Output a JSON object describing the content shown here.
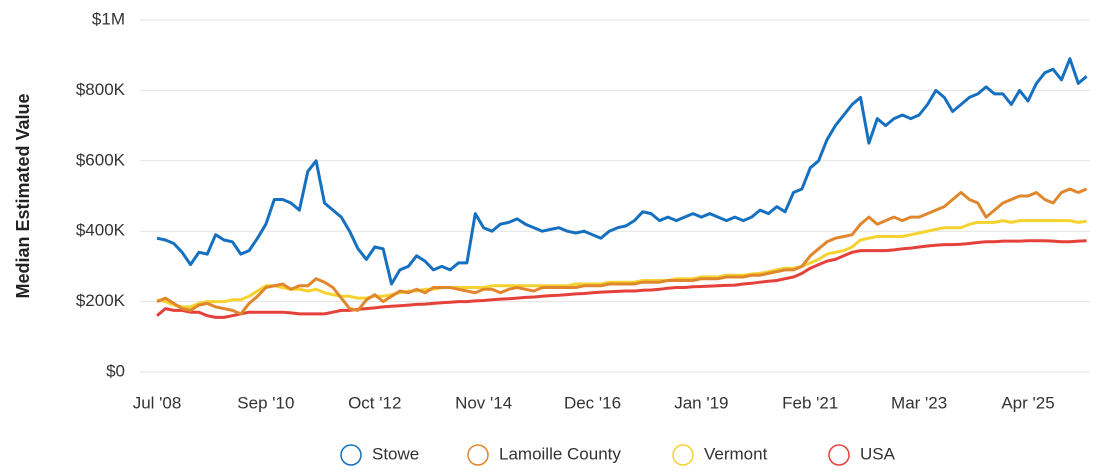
{
  "chart_data": {
    "type": "line",
    "y_label": "Median Estimated Value",
    "categories": [
      "Jul '08",
      null,
      null,
      null,
      null,
      null,
      null,
      null,
      null,
      null,
      null,
      null,
      null,
      "Sep '10",
      null,
      null,
      null,
      null,
      null,
      null,
      null,
      null,
      null,
      null,
      null,
      null,
      "Oct '12",
      null,
      null,
      null,
      null,
      null,
      null,
      null,
      null,
      null,
      null,
      null,
      null,
      "Nov '14",
      null,
      null,
      null,
      null,
      null,
      null,
      null,
      null,
      null,
      null,
      null,
      null,
      "Dec '16",
      null,
      null,
      null,
      null,
      null,
      null,
      null,
      null,
      null,
      null,
      null,
      null,
      "Jan '19",
      null,
      null,
      null,
      null,
      null,
      null,
      null,
      null,
      null,
      null,
      null,
      null,
      "Feb '21",
      null,
      null,
      null,
      null,
      null,
      null,
      null,
      null,
      null,
      null,
      null,
      null,
      "Mar '23",
      null,
      null,
      null,
      null,
      null,
      null,
      null,
      null,
      null,
      null,
      null,
      null,
      "Apr '25",
      null,
      null,
      null,
      null,
      null,
      null,
      null
    ],
    "series": [
      {
        "name": "Stowe",
        "color": "#1570c0",
        "values": [
          380000,
          375000,
          365000,
          340000,
          305000,
          340000,
          335000,
          390000,
          375000,
          370000,
          335000,
          345000,
          380000,
          420000,
          490000,
          490000,
          480000,
          460000,
          570000,
          600000,
          480000,
          460000,
          440000,
          400000,
          350000,
          320000,
          355000,
          350000,
          250000,
          290000,
          300000,
          330000,
          315000,
          290000,
          300000,
          290000,
          310000,
          310000,
          450000,
          410000,
          400000,
          420000,
          425000,
          435000,
          420000,
          410000,
          400000,
          405000,
          410000,
          400000,
          395000,
          400000,
          390000,
          380000,
          400000,
          410000,
          415000,
          430000,
          455000,
          450000,
          430000,
          440000,
          430000,
          440000,
          450000,
          440000,
          450000,
          440000,
          430000,
          440000,
          430000,
          440000,
          460000,
          450000,
          470000,
          455000,
          510000,
          520000,
          580000,
          600000,
          660000,
          700000,
          730000,
          760000,
          780000,
          650000,
          720000,
          700000,
          720000,
          730000,
          720000,
          730000,
          760000,
          800000,
          780000,
          740000,
          760000,
          780000,
          790000,
          810000,
          790000,
          790000,
          760000,
          800000,
          770000,
          820000,
          850000,
          860000,
          830000,
          890000,
          820000,
          840000
        ]
      },
      {
        "name": "Lamoille County",
        "color": "#e0872e",
        "values": [
          200000,
          210000,
          195000,
          180000,
          175000,
          190000,
          195000,
          185000,
          180000,
          175000,
          165000,
          195000,
          215000,
          240000,
          245000,
          250000,
          235000,
          245000,
          245000,
          265000,
          255000,
          240000,
          210000,
          180000,
          175000,
          205000,
          220000,
          200000,
          215000,
          230000,
          225000,
          235000,
          225000,
          240000,
          240000,
          240000,
          235000,
          230000,
          225000,
          235000,
          235000,
          225000,
          235000,
          240000,
          235000,
          230000,
          240000,
          240000,
          240000,
          240000,
          240000,
          245000,
          245000,
          245000,
          250000,
          250000,
          250000,
          250000,
          255000,
          255000,
          255000,
          260000,
          260000,
          260000,
          260000,
          265000,
          265000,
          265000,
          270000,
          270000,
          270000,
          275000,
          275000,
          280000,
          285000,
          290000,
          290000,
          300000,
          330000,
          350000,
          370000,
          380000,
          385000,
          390000,
          420000,
          440000,
          420000,
          430000,
          440000,
          430000,
          440000,
          440000,
          450000,
          460000,
          470000,
          490000,
          510000,
          490000,
          480000,
          440000,
          460000,
          480000,
          490000,
          500000,
          500000,
          510000,
          490000,
          480000,
          510000,
          520000,
          510000,
          520000
        ]
      },
      {
        "name": "Vermont",
        "color": "#f5d22f",
        "values": [
          205000,
          200000,
          190000,
          185000,
          185000,
          195000,
          200000,
          200000,
          200000,
          205000,
          205000,
          215000,
          230000,
          245000,
          245000,
          240000,
          235000,
          235000,
          230000,
          235000,
          225000,
          220000,
          215000,
          215000,
          210000,
          210000,
          215000,
          215000,
          220000,
          225000,
          230000,
          230000,
          235000,
          235000,
          240000,
          240000,
          240000,
          240000,
          240000,
          240000,
          245000,
          245000,
          245000,
          245000,
          245000,
          245000,
          245000,
          245000,
          245000,
          245000,
          250000,
          250000,
          250000,
          250000,
          255000,
          255000,
          255000,
          255000,
          260000,
          260000,
          260000,
          260000,
          265000,
          265000,
          265000,
          270000,
          270000,
          270000,
          275000,
          275000,
          275000,
          278000,
          280000,
          285000,
          290000,
          295000,
          295000,
          300000,
          310000,
          320000,
          335000,
          340000,
          345000,
          355000,
          375000,
          380000,
          385000,
          385000,
          385000,
          385000,
          390000,
          395000,
          400000,
          405000,
          410000,
          410000,
          410000,
          420000,
          425000,
          425000,
          425000,
          430000,
          425000,
          430000,
          430000,
          430000,
          430000,
          430000,
          430000,
          430000,
          425000,
          428000
        ]
      },
      {
        "name": "USA",
        "color": "#e5413b",
        "values": [
          160000,
          180000,
          175000,
          175000,
          170000,
          170000,
          160000,
          155000,
          155000,
          160000,
          165000,
          170000,
          170000,
          170000,
          170000,
          170000,
          168000,
          165000,
          165000,
          165000,
          165000,
          170000,
          175000,
          175000,
          178000,
          180000,
          182000,
          185000,
          187000,
          188000,
          190000,
          192000,
          193000,
          195000,
          197000,
          198000,
          200000,
          200000,
          202000,
          203000,
          205000,
          207000,
          208000,
          210000,
          212000,
          213000,
          215000,
          217000,
          218000,
          220000,
          222000,
          223000,
          225000,
          227000,
          228000,
          229000,
          230000,
          230000,
          232000,
          233000,
          235000,
          238000,
          240000,
          240000,
          242000,
          243000,
          244000,
          245000,
          246000,
          247000,
          250000,
          252000,
          255000,
          258000,
          260000,
          265000,
          270000,
          280000,
          295000,
          305000,
          315000,
          320000,
          330000,
          340000,
          345000,
          345000,
          345000,
          345000,
          347000,
          350000,
          352000,
          355000,
          358000,
          360000,
          362000,
          362000,
          363000,
          365000,
          368000,
          370000,
          370000,
          372000,
          372000,
          372000,
          373000,
          373000,
          373000,
          372000,
          370000,
          370000,
          372000,
          373000
        ]
      }
    ],
    "ylim": [
      0,
      1000000
    ],
    "yticks": [
      {
        "value": 0,
        "label": "$0"
      },
      {
        "value": 200000,
        "label": "$200K"
      },
      {
        "value": 400000,
        "label": "$400K"
      },
      {
        "value": 600000,
        "label": "$600K"
      },
      {
        "value": 800000,
        "label": "$800K"
      },
      {
        "value": 1000000,
        "label": "$1M"
      }
    ],
    "grid": true,
    "legend": "bottom"
  }
}
